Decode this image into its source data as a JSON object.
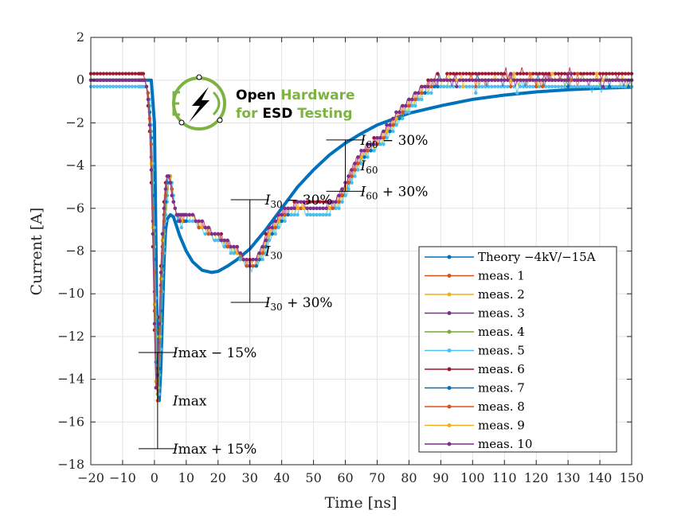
{
  "chart_data": {
    "type": "line",
    "title": "",
    "xlabel": "Time [ns]",
    "ylabel": "Current [A]",
    "xlim": [
      -20,
      150
    ],
    "ylim": [
      -18,
      2
    ],
    "grid": true,
    "legend_position": "bottom-right",
    "x_ticks": [
      -20,
      -10,
      0,
      10,
      20,
      30,
      40,
      50,
      60,
      70,
      80,
      90,
      100,
      110,
      120,
      130,
      140,
      150
    ],
    "x_tick_labels": [
      "−20",
      "−10",
      "0",
      "10",
      "20",
      "30",
      "40",
      "50",
      "60",
      "70",
      "80",
      "90",
      "100",
      "110",
      "120",
      "130",
      "140",
      "150"
    ],
    "y_ticks": [
      2,
      0,
      -2,
      -4,
      -6,
      -8,
      -10,
      -12,
      -14,
      -16,
      -18
    ],
    "y_tick_labels": [
      "2",
      "0",
      "−2",
      "−4",
      "−6",
      "−8",
      "−10",
      "−12",
      "−14",
      "−16",
      "−18"
    ],
    "theory": {
      "name": "Theory −4kV/−15A",
      "color": "#0072BD",
      "x": [
        -20,
        -1,
        0,
        0.5,
        1,
        1.5,
        2,
        2.5,
        3,
        3.5,
        4,
        5,
        6,
        8,
        10,
        12,
        15,
        18,
        20,
        23,
        26,
        30,
        35,
        40,
        45,
        50,
        55,
        60,
        65,
        70,
        80,
        90,
        100,
        110,
        120,
        130,
        140,
        150
      ],
      "y": [
        0,
        0,
        -2,
        -8,
        -14,
        -15,
        -13.5,
        -11,
        -8.5,
        -7,
        -6.5,
        -6.3,
        -6.4,
        -7.3,
        -8.0,
        -8.5,
        -8.9,
        -9.0,
        -8.95,
        -8.7,
        -8.4,
        -7.9,
        -7.0,
        -6.0,
        -5.0,
        -4.2,
        -3.5,
        -2.95,
        -2.5,
        -2.1,
        -1.55,
        -1.2,
        -0.9,
        -0.7,
        -0.55,
        -0.45,
        -0.38,
        -0.33
      ]
    },
    "series": [
      {
        "name": "meas. 1",
        "color": "#D95319",
        "offset": 0.1
      },
      {
        "name": "meas. 2",
        "color": "#EDB120",
        "offset": -0.1
      },
      {
        "name": "meas. 3",
        "color": "#7E2F8E",
        "offset": 0.05
      },
      {
        "name": "meas. 4",
        "color": "#77AC30",
        "offset": -0.15
      },
      {
        "name": "meas. 5",
        "color": "#4DBEEE",
        "offset": -0.2
      },
      {
        "name": "meas. 6",
        "color": "#A2142F",
        "offset": 0.15
      },
      {
        "name": "meas. 7",
        "color": "#0072BD",
        "offset": -0.05
      },
      {
        "name": "meas. 8",
        "color": "#D95319",
        "offset": 0.0
      },
      {
        "name": "meas. 9",
        "color": "#EDB120",
        "offset": 0.08
      },
      {
        "name": "meas. 10",
        "color": "#7E2F8E",
        "offset": 0.12
      }
    ],
    "measured_profile": {
      "x": [
        -20,
        -3,
        -2,
        -1,
        0,
        0.5,
        1,
        1.5,
        2,
        3,
        4,
        5,
        6,
        7,
        8,
        10,
        12,
        14,
        16,
        18,
        20,
        22,
        24,
        26,
        28,
        30,
        32,
        34,
        36,
        38,
        40,
        42,
        44,
        46,
        48,
        50,
        52,
        54,
        56,
        58,
        60,
        62,
        64,
        66,
        68,
        70,
        72,
        74,
        76,
        78,
        80,
        82,
        84,
        86,
        88,
        90,
        92,
        95,
        100,
        110,
        120,
        130,
        140,
        150
      ],
      "y": [
        0,
        0,
        -0.5,
        -3,
        -9,
        -14,
        -15,
        -13,
        -10,
        -6.5,
        -4.6,
        -4.5,
        -5.8,
        -6.3,
        -6.6,
        -6.4,
        -6.3,
        -6.8,
        -6.9,
        -7.2,
        -7.3,
        -7.6,
        -7.8,
        -8.0,
        -8.4,
        -8.7,
        -8.5,
        -8.0,
        -7.2,
        -6.8,
        -6.4,
        -6.1,
        -6.0,
        -5.9,
        -6.0,
        -6.0,
        -6.0,
        -6.0,
        -5.9,
        -5.6,
        -5.1,
        -4.4,
        -3.8,
        -3.4,
        -3.1,
        -2.9,
        -2.6,
        -2.2,
        -1.8,
        -1.4,
        -1.1,
        -0.8,
        -0.5,
        -0.3,
        -0.15,
        -0.05,
        0,
        0,
        0,
        0,
        0,
        0,
        0,
        0
      ]
    },
    "annotations": {
      "imax": {
        "x": 1,
        "center": -15,
        "minus_label_value": -12.75,
        "plus_label_value": -17.25,
        "label_minus": "− 15%",
        "label_center": "",
        "label_plus": "+ 15%",
        "sym": "I",
        "sub": "max"
      },
      "i30": {
        "x": 30,
        "center": -8,
        "minus_label_value": -5.6,
        "plus_label_value": -10.4,
        "label_minus": "− 30%",
        "label_plus": "+ 30%",
        "sym": "I",
        "sub": "30"
      },
      "i60": {
        "x": 60,
        "center": -4,
        "minus_label_value": -2.8,
        "plus_label_value": -5.2,
        "label_minus": "− 30%",
        "label_plus": "+ 30%",
        "sym": "I",
        "sub": "60"
      }
    }
  },
  "logo": {
    "line1_a": "Open",
    "line1_b": "Hardware",
    "line2_a": "for",
    "line2_b": "ESD",
    "line2_c": "Testing",
    "mark_text": "ESD",
    "dark_color": "#000000",
    "green_color": "#7CB342"
  }
}
